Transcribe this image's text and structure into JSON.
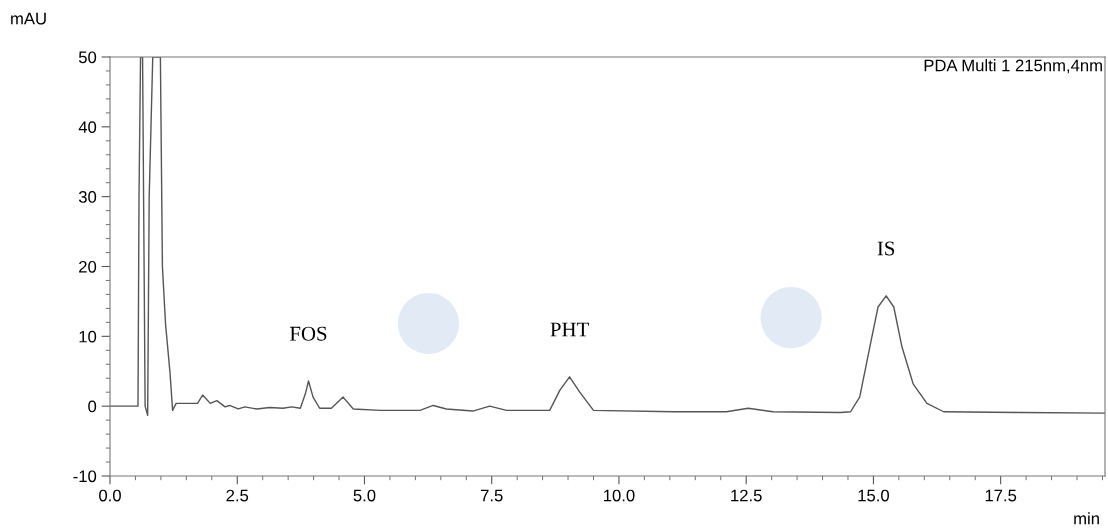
{
  "chart_data": {
    "type": "line",
    "xlabel": "min",
    "ylabel": "mAU",
    "annotations": [
      "PDA Multi 1 215nm,4nm",
      {
        "text": "FOS",
        "x": 3.9,
        "y": 3.6
      },
      {
        "text": "PHT",
        "x": 9.03,
        "y": 4.2
      },
      {
        "text": "IS",
        "x": 15.25,
        "y": 15.8
      }
    ],
    "series": [
      {
        "color": "#555555",
        "x": [
          0.0,
          0.55,
          0.57,
          0.6,
          0.64,
          0.69,
          0.74,
          0.77,
          0.84,
          0.99,
          1.03,
          1.09,
          1.18,
          1.23,
          1.3,
          1.37,
          1.72,
          1.82,
          1.97,
          2.1,
          2.26,
          2.35,
          2.52,
          2.65,
          2.88,
          3.14,
          3.4,
          3.57,
          3.74,
          3.84,
          3.9,
          3.99,
          4.12,
          4.35,
          4.58,
          4.78,
          5.31,
          6.09,
          6.35,
          6.61,
          7.13,
          7.46,
          7.79,
          8.64,
          8.84,
          9.03,
          9.23,
          9.5,
          11.07,
          12.11,
          12.54,
          13.03,
          14.35,
          14.55,
          14.73,
          14.93,
          15.09,
          15.25,
          15.4,
          15.56,
          15.78,
          16.05,
          16.38,
          17.88,
          19.55
        ],
        "values": [
          0.0,
          0.0,
          30,
          50,
          50,
          0,
          -1.3,
          30,
          50,
          50,
          20,
          11.9,
          4.7,
          -0.6,
          0.4,
          0.4,
          0.4,
          1.6,
          0.4,
          0.8,
          -0.1,
          0.1,
          -0.4,
          -0.1,
          -0.4,
          -0.2,
          -0.3,
          -0.1,
          -0.3,
          1.8,
          3.6,
          1.3,
          -0.3,
          -0.3,
          1.3,
          -0.4,
          -0.6,
          -0.6,
          0.1,
          -0.4,
          -0.7,
          0.0,
          -0.6,
          -0.6,
          2.3,
          4.2,
          2.0,
          -0.6,
          -0.8,
          -0.8,
          -0.3,
          -0.8,
          -0.9,
          -0.8,
          1.3,
          8.5,
          14.2,
          15.8,
          14.2,
          8.5,
          3.2,
          0.4,
          -0.8,
          -0.9,
          -1.0
        ]
      }
    ],
    "xlim": [
      0,
      19.55
    ],
    "xticks": [
      {
        "value": 0,
        "label": "0.0"
      },
      {
        "value": 2.5,
        "label": "2.5"
      },
      {
        "value": 5,
        "label": "5.0"
      },
      {
        "value": 7.5,
        "label": "7.5"
      },
      {
        "value": 10,
        "label": "10.0"
      },
      {
        "value": 12.5,
        "label": "12.5"
      },
      {
        "value": 15,
        "label": "15.0"
      },
      {
        "value": 17.5,
        "label": "17.5"
      }
    ],
    "ylim": [
      -10,
      50
    ],
    "yticks": [
      -10,
      0,
      10,
      20,
      30,
      40,
      50
    ],
    "grid": false,
    "marker": "none",
    "line_style": "solid"
  }
}
